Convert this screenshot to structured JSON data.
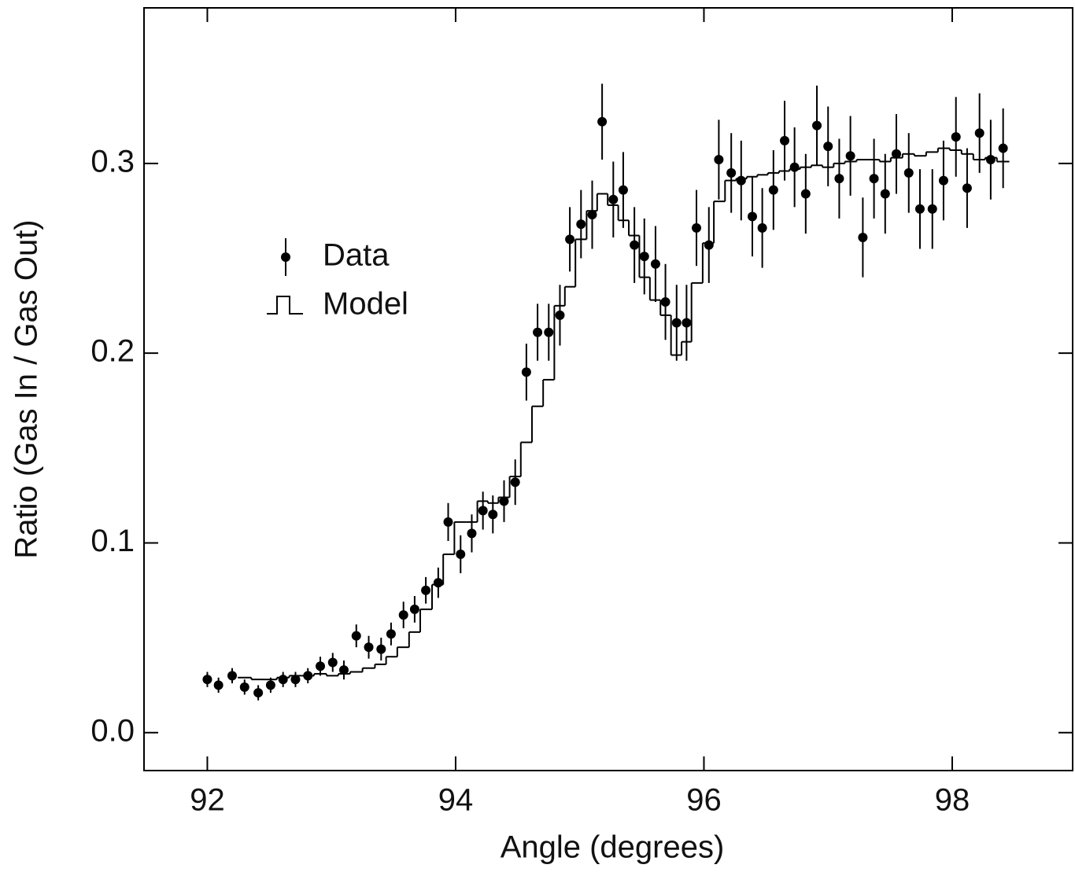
{
  "chart_data": {
    "type": "scatter",
    "x_label": "Angle  (degrees)",
    "y_label": "Ratio  (Gas In / Gas Out)",
    "xlim": [
      91.49,
      98.97
    ],
    "ylim": [
      -0.02,
      0.382
    ],
    "xticks": [
      92,
      94,
      96,
      98
    ],
    "yticks": [
      {
        "value": 0,
        "label": "0.0"
      },
      0.1,
      0.2,
      0.3
    ],
    "series": [
      {
        "name": "Data",
        "color": "#000000",
        "x": [
          92.0,
          92.09,
          92.2,
          92.3,
          92.41,
          92.51,
          92.61,
          92.71,
          92.81,
          92.91,
          93.01,
          93.1,
          93.2,
          93.3,
          93.4,
          93.48,
          93.58,
          93.67,
          93.76,
          93.86,
          93.94,
          94.04,
          94.13,
          94.22,
          94.3,
          94.39,
          94.48,
          94.57,
          94.66,
          94.75,
          94.84,
          94.92,
          95.01,
          95.1,
          95.18,
          95.27,
          95.35,
          95.44,
          95.52,
          95.61,
          95.69,
          95.78,
          95.86,
          95.94,
          96.04,
          96.12,
          96.22,
          96.3,
          96.39,
          96.47,
          96.56,
          96.65,
          96.73,
          96.82,
          96.91,
          97.0,
          97.09,
          97.18,
          97.28,
          97.37,
          97.46,
          97.55,
          97.65,
          97.74,
          97.84,
          97.93,
          98.03,
          98.12,
          98.22,
          98.31,
          98.41
        ],
        "values": [
          0.028,
          0.025,
          0.03,
          0.024,
          0.021,
          0.025,
          0.028,
          0.028,
          0.03,
          0.035,
          0.037,
          0.033,
          0.051,
          0.045,
          0.044,
          0.052,
          0.062,
          0.065,
          0.075,
          0.079,
          0.111,
          0.094,
          0.105,
          0.117,
          0.115,
          0.122,
          0.132,
          0.19,
          0.211,
          0.211,
          0.22,
          0.26,
          0.268,
          0.273,
          0.322,
          0.281,
          0.286,
          0.257,
          0.251,
          0.247,
          0.227,
          0.216,
          0.216,
          0.266,
          0.257,
          0.302,
          0.295,
          0.291,
          0.272,
          0.266,
          0.286,
          0.312,
          0.298,
          0.284,
          0.32,
          0.309,
          0.292,
          0.304,
          0.261,
          0.292,
          0.284,
          0.305,
          0.295,
          0.276,
          0.276,
          0.291,
          0.314,
          0.287,
          0.316,
          0.302,
          0.308
        ],
        "errors": [
          0.004,
          0.004,
          0.004,
          0.004,
          0.004,
          0.004,
          0.004,
          0.004,
          0.004,
          0.005,
          0.005,
          0.005,
          0.006,
          0.006,
          0.006,
          0.006,
          0.007,
          0.007,
          0.007,
          0.008,
          0.01,
          0.01,
          0.01,
          0.01,
          0.01,
          0.011,
          0.012,
          0.015,
          0.015,
          0.015,
          0.016,
          0.017,
          0.018,
          0.018,
          0.02,
          0.02,
          0.02,
          0.02,
          0.02,
          0.02,
          0.02,
          0.02,
          0.02,
          0.02,
          0.02,
          0.021,
          0.021,
          0.021,
          0.021,
          0.021,
          0.021,
          0.021,
          0.021,
          0.021,
          0.021,
          0.021,
          0.021,
          0.021,
          0.021,
          0.021,
          0.021,
          0.021,
          0.021,
          0.021,
          0.021,
          0.021,
          0.021,
          0.021,
          0.021,
          0.021,
          0.021
        ]
      },
      {
        "name": "Model",
        "color": "#000000",
        "step": true,
        "x": [
          92.3,
          92.41,
          92.51,
          92.61,
          92.71,
          92.81,
          92.91,
          93.01,
          93.1,
          93.2,
          93.3,
          93.4,
          93.48,
          93.58,
          93.67,
          93.76,
          93.86,
          93.94,
          94.04,
          94.13,
          94.22,
          94.3,
          94.39,
          94.48,
          94.57,
          94.66,
          94.75,
          94.84,
          94.92,
          95.01,
          95.1,
          95.18,
          95.27,
          95.35,
          95.44,
          95.52,
          95.61,
          95.69,
          95.78,
          95.86,
          95.94,
          96.04,
          96.12,
          96.22,
          96.3,
          96.39,
          96.47,
          96.56,
          96.65,
          96.73,
          96.82,
          96.91,
          97.0,
          97.09,
          97.18,
          97.28,
          97.37,
          97.46,
          97.55,
          97.65,
          97.74,
          97.84,
          97.93,
          98.03,
          98.12,
          98.22,
          98.31,
          98.41
        ],
        "values": [
          0.029,
          0.028,
          0.028,
          0.029,
          0.03,
          0.03,
          0.031,
          0.03,
          0.031,
          0.032,
          0.034,
          0.036,
          0.04,
          0.045,
          0.053,
          0.065,
          0.078,
          0.094,
          0.111,
          0.111,
          0.122,
          0.121,
          0.124,
          0.135,
          0.153,
          0.172,
          0.186,
          0.225,
          0.235,
          0.26,
          0.275,
          0.284,
          0.278,
          0.27,
          0.262,
          0.24,
          0.228,
          0.22,
          0.199,
          0.206,
          0.237,
          0.258,
          0.28,
          0.291,
          0.292,
          0.293,
          0.294,
          0.295,
          0.296,
          0.297,
          0.298,
          0.299,
          0.298,
          0.3,
          0.301,
          0.302,
          0.302,
          0.301,
          0.303,
          0.305,
          0.304,
          0.306,
          0.308,
          0.307,
          0.305,
          0.302,
          0.303,
          0.301
        ]
      }
    ]
  }
}
